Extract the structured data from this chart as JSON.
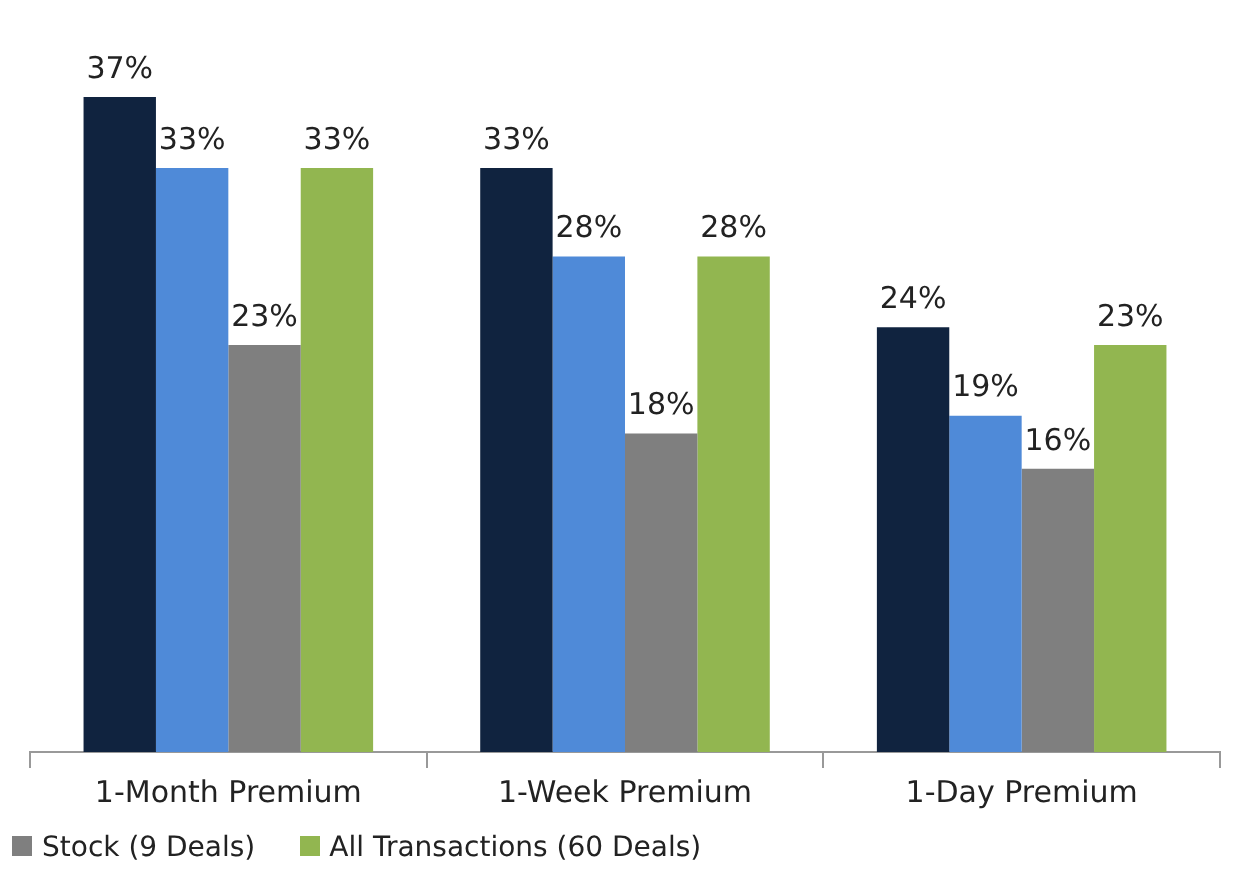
{
  "chart_data": {
    "type": "bar",
    "categories": [
      "1-Month Premium",
      "1-Week Premium",
      "1-Day Premium"
    ],
    "series": [
      {
        "color": "#10233f",
        "values": [
          37,
          33,
          24
        ],
        "value_labels": [
          "37%",
          "33%",
          "24%"
        ]
      },
      {
        "color": "#4f8ad8",
        "values": [
          33,
          28,
          19
        ],
        "value_labels": [
          "33%",
          "28%",
          "19%"
        ]
      },
      {
        "name": "Stock (9 Deals)",
        "color": "#7f7f7f",
        "values": [
          23,
          18,
          16
        ],
        "value_labels": [
          "23%",
          "18%",
          "16%"
        ]
      },
      {
        "name": "All Transactions (60 Deals)",
        "color": "#92b650",
        "values": [
          33,
          28,
          23
        ],
        "value_labels": [
          "33%",
          "28%",
          "23%"
        ]
      }
    ],
    "tick_labels": "x",
    "grid": false,
    "legend": "bottom"
  }
}
